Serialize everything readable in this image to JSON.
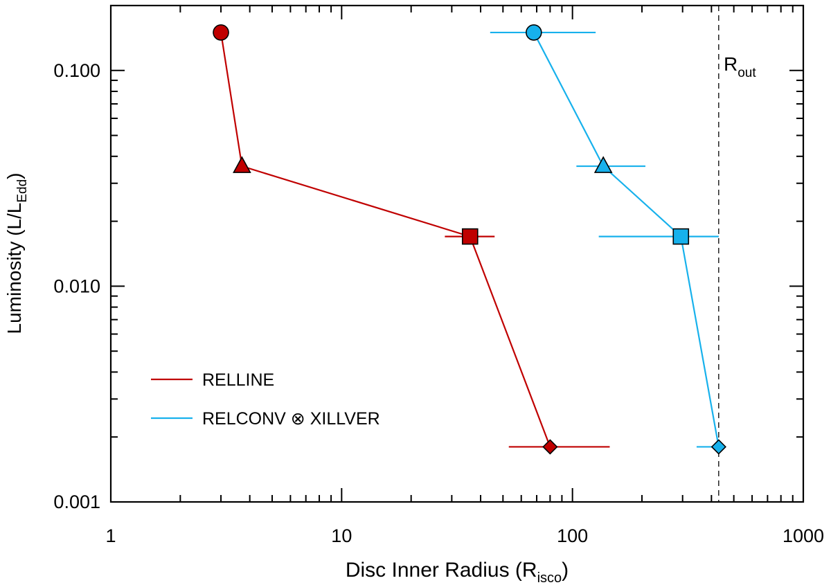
{
  "chart_data": {
    "type": "scatter",
    "xlabel": "Disc Inner Radius (R",
    "xlabel_sub": "isco",
    "xlabel_end": ")",
    "ylabel": "Luminosity (L/L",
    "ylabel_sub": "Edd",
    "ylabel_end": ")",
    "x_scale": "log",
    "y_scale": "log",
    "xlim": [
      1,
      1000
    ],
    "ylim": [
      0.001,
      0.2
    ],
    "x_ticks": [
      {
        "value": 1,
        "label": "1"
      },
      {
        "value": 10,
        "label": "10"
      },
      {
        "value": 100,
        "label": "100"
      },
      {
        "value": 1000,
        "label": "1000"
      }
    ],
    "y_ticks": [
      {
        "value": 0.001,
        "label": "0.001"
      },
      {
        "value": 0.01,
        "label": "0.010"
      },
      {
        "value": 0.1,
        "label": "0.100"
      }
    ],
    "grid": false,
    "legend_position": "bottom-left",
    "series": [
      {
        "name": "RELLINE",
        "color": "#c00000",
        "points": [
          {
            "x": 3.0,
            "y": 0.15,
            "marker": "circle",
            "xerr_low": null,
            "xerr_high": null
          },
          {
            "x": 3.7,
            "y": 0.036,
            "marker": "triangle",
            "xerr_low": null,
            "xerr_high": null
          },
          {
            "x": 36,
            "y": 0.017,
            "marker": "square",
            "xerr_low": 28,
            "xerr_high": 46
          },
          {
            "x": 80,
            "y": 0.0018,
            "marker": "diamond",
            "xerr_low": 53,
            "xerr_high": 145
          }
        ]
      },
      {
        "name": "RELCONV ⊗ XILLVER",
        "color": "#17b1ec",
        "points": [
          {
            "x": 68,
            "y": 0.15,
            "marker": "circle",
            "xerr_low": 44,
            "xerr_high": 126
          },
          {
            "x": 136,
            "y": 0.036,
            "marker": "triangle",
            "xerr_low": 104,
            "xerr_high": 207
          },
          {
            "x": 295,
            "y": 0.017,
            "marker": "square",
            "xerr_low": 130,
            "xerr_high": 430
          },
          {
            "x": 430,
            "y": 0.0018,
            "marker": "diamond",
            "xerr_low": 345,
            "xerr_high": 430
          }
        ]
      }
    ],
    "reference_line": {
      "x": 430,
      "label": "R",
      "label_sub": "out",
      "style": "dashed"
    }
  }
}
